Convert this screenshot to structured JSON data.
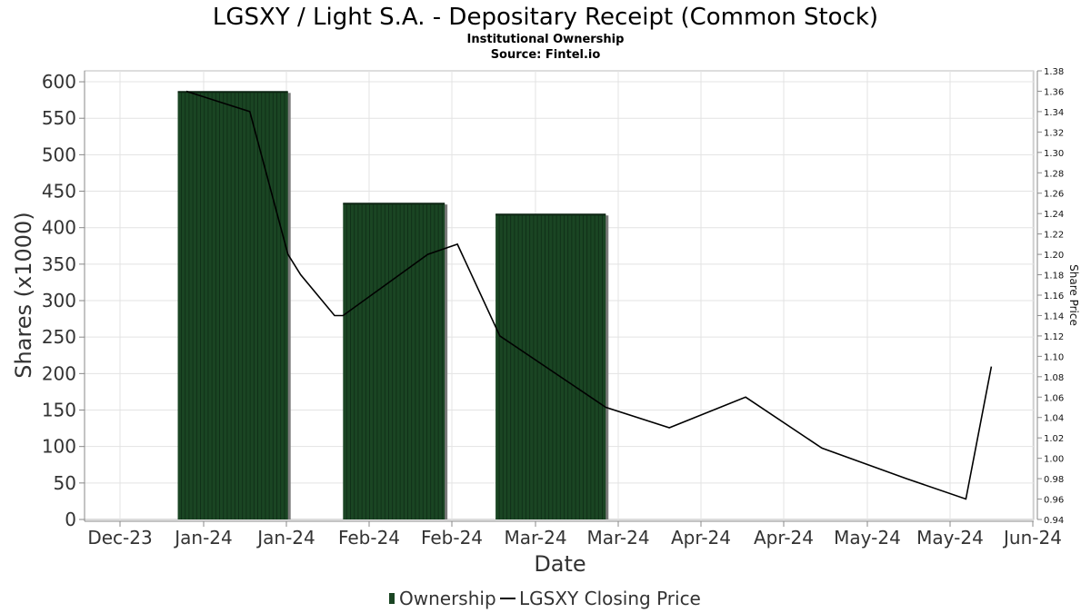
{
  "chart_data": {
    "type": "bar",
    "title": "LGSXY / Light S.A. - Depositary Receipt (Common Stock)",
    "subtitle": "Institutional Ownership",
    "source": "Source: Fintel.io",
    "xlabel": "Date",
    "ylabel": "Shares (x1000)",
    "y2label": "Share Price",
    "ylim": [
      0,
      615
    ],
    "y2lim": [
      0.94,
      1.38
    ],
    "yticks": [
      0,
      50,
      100,
      150,
      200,
      250,
      300,
      350,
      400,
      450,
      500,
      550,
      600
    ],
    "y2ticks": [
      "1.38",
      "1.36",
      "1.34",
      "1.32",
      "1.30",
      "1.28",
      "1.26",
      "1.24",
      "1.22",
      "1.20",
      "1.18",
      "1.16",
      "1.14",
      "1.12",
      "1.10",
      "1.08",
      "1.06",
      "1.04",
      "1.02",
      "1.00",
      "0.98",
      "0.96",
      "0.94"
    ],
    "xtick_labels": [
      "Dec-23",
      "Jan-24",
      "Jan-24",
      "Feb-24",
      "Feb-24",
      "Mar-24",
      "Mar-24",
      "Apr-24",
      "Apr-24",
      "May-24",
      "May-24",
      "Jun-24"
    ],
    "grid": true,
    "legend_position": "bottom",
    "series": [
      {
        "name": "Ownership",
        "kind": "bar",
        "color": "#1a4523",
        "periods": [
          {
            "start": "2023-12-24",
            "end": "2024-01-19",
            "value": 586
          },
          {
            "start": "2024-02-01",
            "end": "2024-02-25",
            "value": 433
          },
          {
            "start": "2024-03-08",
            "end": "2024-04-03",
            "value": 418
          }
        ]
      },
      {
        "name": "LGSXY Closing Price",
        "kind": "line",
        "color": "#000000",
        "points": [
          [
            "2023-12-26",
            1.36
          ],
          [
            "2024-01-10",
            1.34
          ],
          [
            "2024-01-19",
            1.2
          ],
          [
            "2024-01-22",
            1.18
          ],
          [
            "2024-01-30",
            1.14
          ],
          [
            "2024-02-01",
            1.14
          ],
          [
            "2024-02-21",
            1.2
          ],
          [
            "2024-02-28",
            1.21
          ],
          [
            "2024-03-09",
            1.12
          ],
          [
            "2024-04-03",
            1.05
          ],
          [
            "2024-04-18",
            1.03
          ],
          [
            "2024-05-06",
            1.06
          ],
          [
            "2024-05-24",
            1.01
          ],
          [
            "2024-06-13",
            0.98
          ],
          [
            "2024-06-27",
            0.96
          ],
          [
            "2024-07-03",
            1.09
          ]
        ]
      }
    ]
  }
}
